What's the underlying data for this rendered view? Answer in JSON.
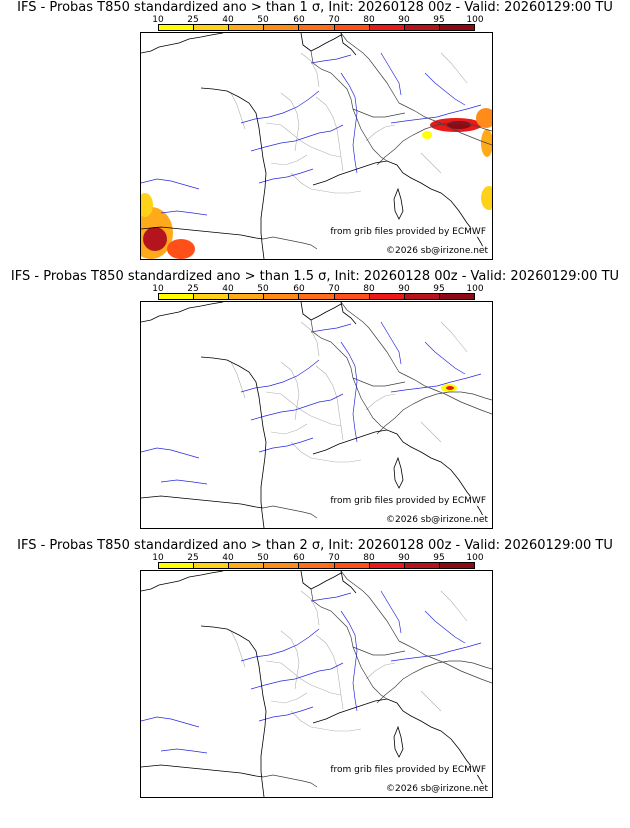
{
  "colorbar": {
    "ticks": [
      "10",
      "25",
      "40",
      "50",
      "60",
      "70",
      "80",
      "90",
      "95",
      "100"
    ],
    "colors": [
      "#ffff00",
      "#ffd21a",
      "#ffaa1a",
      "#ff8c1a",
      "#ff6e1a",
      "#ff501a",
      "#e81a1a",
      "#b4141e",
      "#8c0a14",
      "#5a0000"
    ]
  },
  "map": {
    "credit_source": "from grib files provided by ECMWF",
    "credit_copyright": "©2026 sb@irizone.net"
  },
  "panels": [
    {
      "title": "IFS - Probas T850  standardized ano > than 1 σ, Init: 20260128 00z - Valid: 20260129:00 TU",
      "threshold_sigma": 1
    },
    {
      "title": "IFS - Probas T850  standardized ano > than 1.5 σ, Init: 20260128 00z - Valid: 20260129:00 TU",
      "threshold_sigma": 1.5
    },
    {
      "title": "IFS - Probas T850  standardized ano > than 2 σ, Init: 20260128 00z - Valid: 20260129:00 TU",
      "threshold_sigma": 2
    }
  ]
}
